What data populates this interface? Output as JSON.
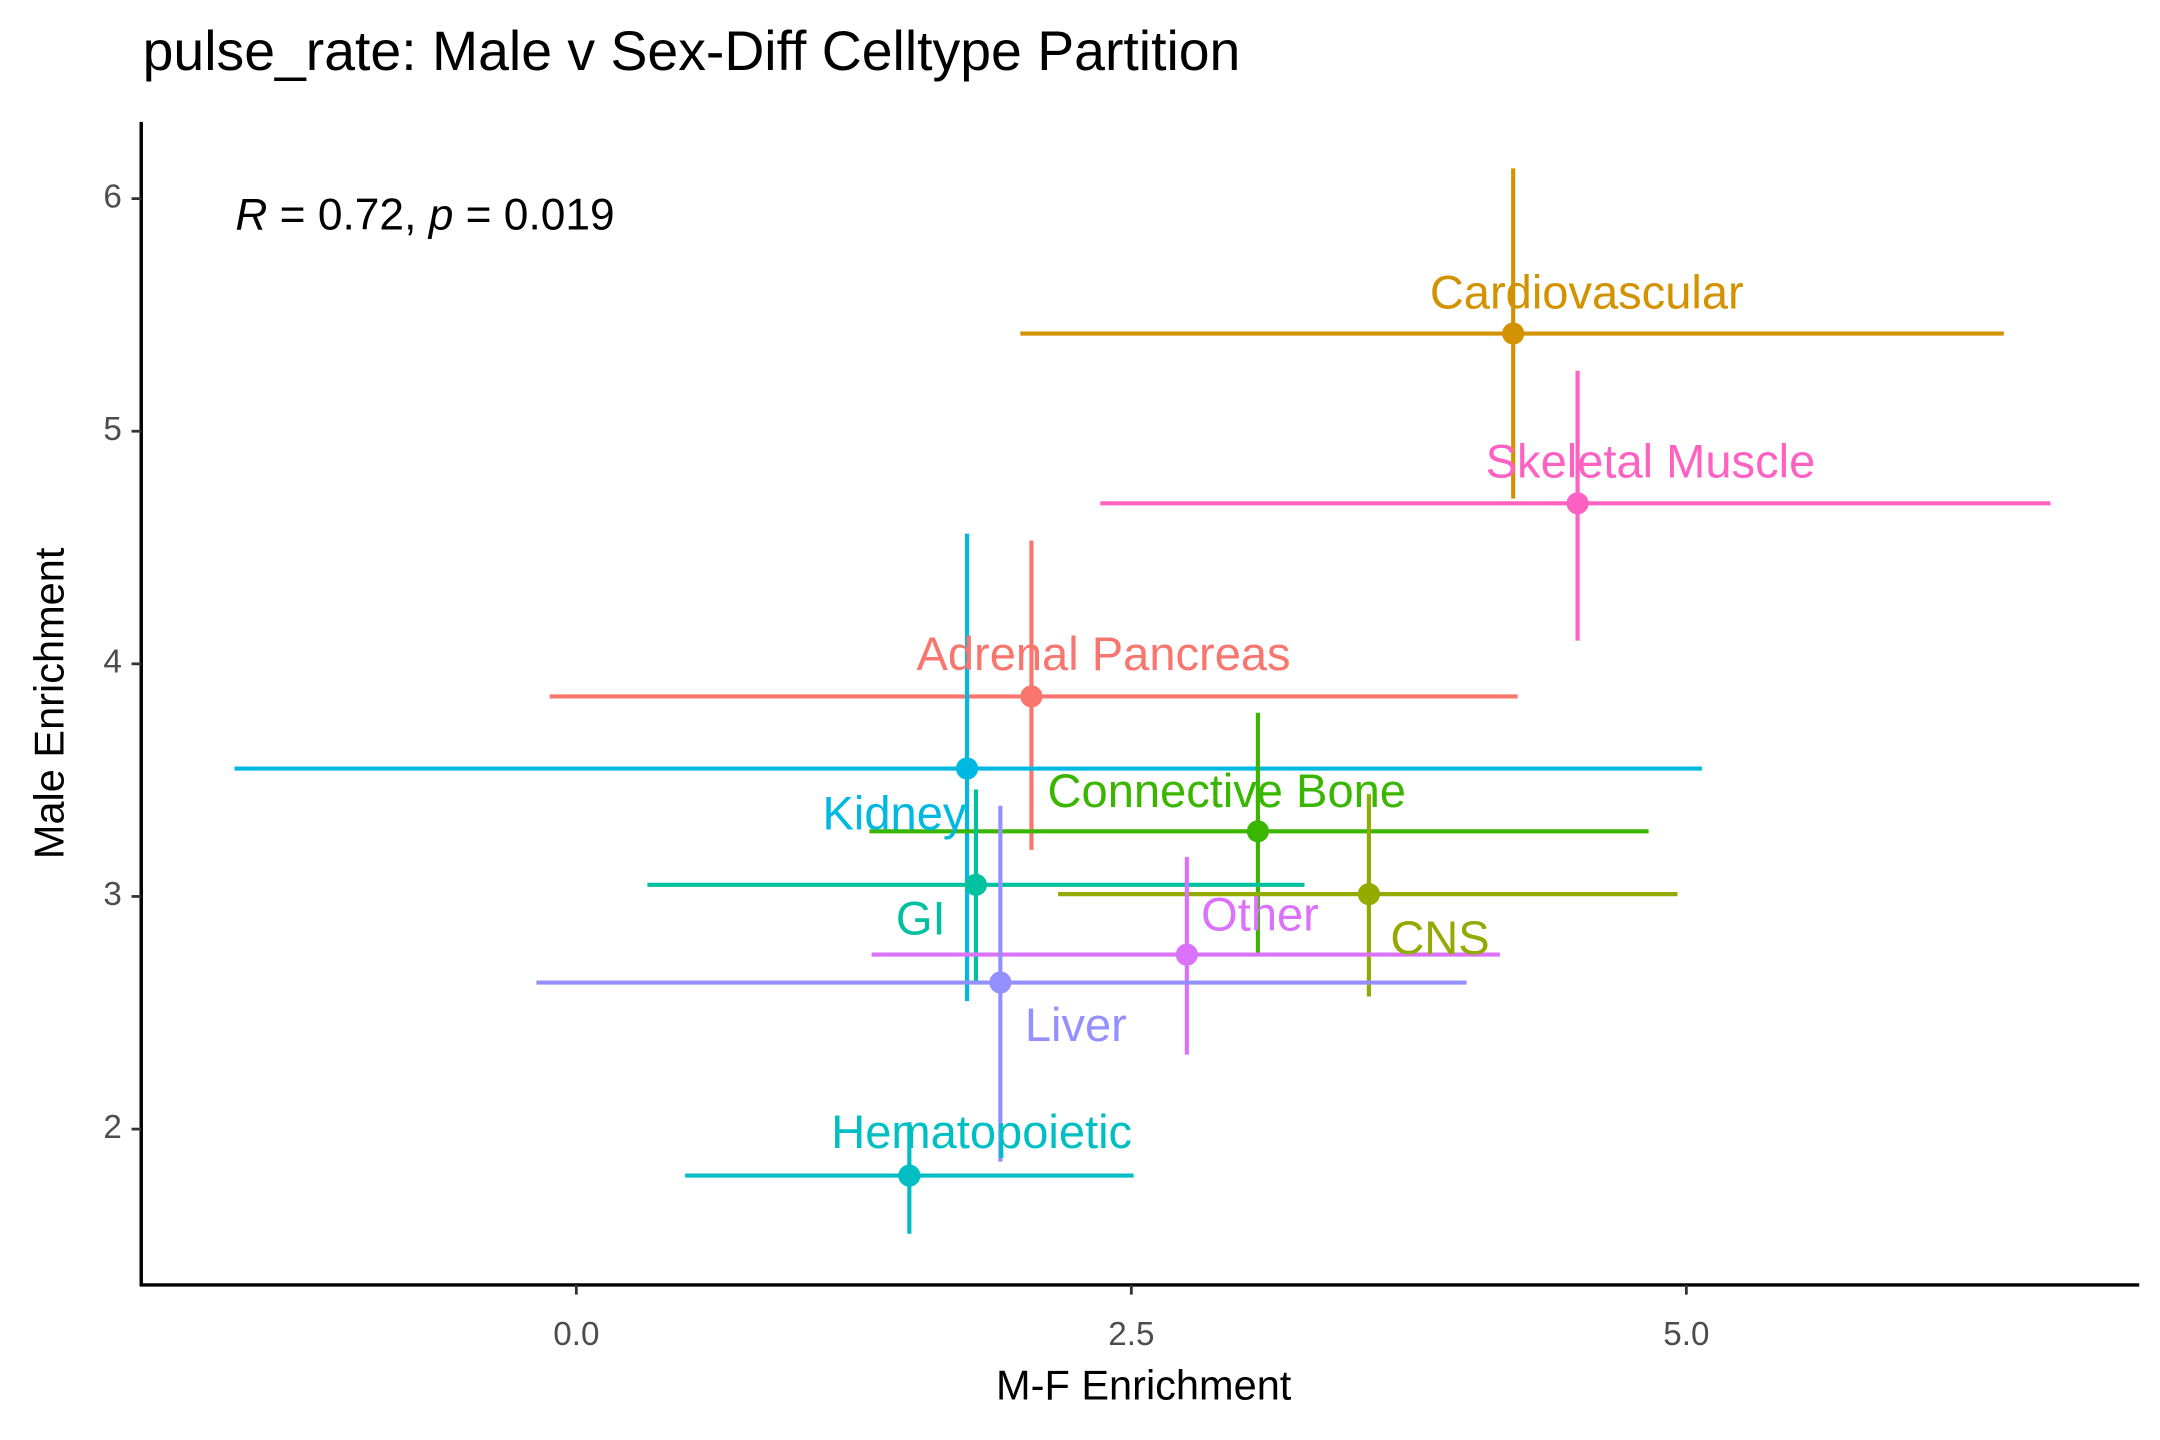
{
  "chart_data": {
    "type": "scatter",
    "title": "pulse_rate: Male v Sex-Diff Celltype Partition",
    "annotation": [
      "R",
      " = 0.72, ",
      "p",
      " = 0.019"
    ],
    "x_label": "M-F Enrichment",
    "y_label": "Male Enrichment",
    "xlim": [
      -1.96,
      7.04
    ],
    "ylim": [
      1.33,
      6.33
    ],
    "xticks": [
      {
        "value": 0,
        "label": "0.0"
      },
      2.5,
      {
        "value": 5,
        "label": "5.0"
      }
    ],
    "yticks": [
      2,
      3,
      4,
      5,
      6
    ],
    "grid": false,
    "points": [
      {
        "name": "Cardiovascular",
        "color": "#D39200",
        "x": 4.22,
        "y": 5.42,
        "xmin": 2.0,
        "xmax": 6.43,
        "ymin": 4.71,
        "ymax": 6.13
      },
      {
        "name": "Skeletal Muscle",
        "color": "#FF61C3",
        "x": 4.51,
        "y": 4.69,
        "xmin": 2.36,
        "xmax": 6.64,
        "ymin": 4.1,
        "ymax": 5.26
      },
      {
        "name": "Adrenal Pancreas",
        "color": "#F8766D",
        "x": 2.05,
        "y": 3.86,
        "xmin": -0.12,
        "xmax": 4.24,
        "ymin": 3.2,
        "ymax": 4.53
      },
      {
        "name": "Kidney",
        "color": "#00B9E3",
        "x": 1.76,
        "y": 3.55,
        "xmin": -1.54,
        "xmax": 5.07,
        "ymin": 2.55,
        "ymax": 4.56
      },
      {
        "name": "Connective Bone",
        "color": "#39B600",
        "x": 3.07,
        "y": 3.28,
        "xmin": 1.32,
        "xmax": 4.83,
        "ymin": 2.75,
        "ymax": 3.79
      },
      {
        "name": "CNS",
        "color": "#93AA00",
        "x": 3.57,
        "y": 3.01,
        "xmin": 2.17,
        "xmax": 4.96,
        "ymin": 2.57,
        "ymax": 3.44
      },
      {
        "name": "GI",
        "color": "#00C19F",
        "x": 1.8,
        "y": 3.05,
        "xmin": 0.32,
        "xmax": 3.28,
        "ymin": 2.63,
        "ymax": 3.46
      },
      {
        "name": "Other",
        "color": "#DB72FB",
        "x": 2.75,
        "y": 2.75,
        "xmin": 1.33,
        "xmax": 4.16,
        "ymin": 2.32,
        "ymax": 3.17
      },
      {
        "name": "Liver",
        "color": "#9590FF",
        "x": 1.91,
        "y": 2.63,
        "xmin": -0.18,
        "xmax": 4.01,
        "ymin": 1.86,
        "ymax": 3.39
      },
      {
        "name": "Hematopoietic",
        "color": "#00BFC4",
        "x": 1.5,
        "y": 1.8,
        "xmin": 0.49,
        "xmax": 2.51,
        "ymin": 1.55,
        "ymax": 2.03
      }
    ]
  }
}
